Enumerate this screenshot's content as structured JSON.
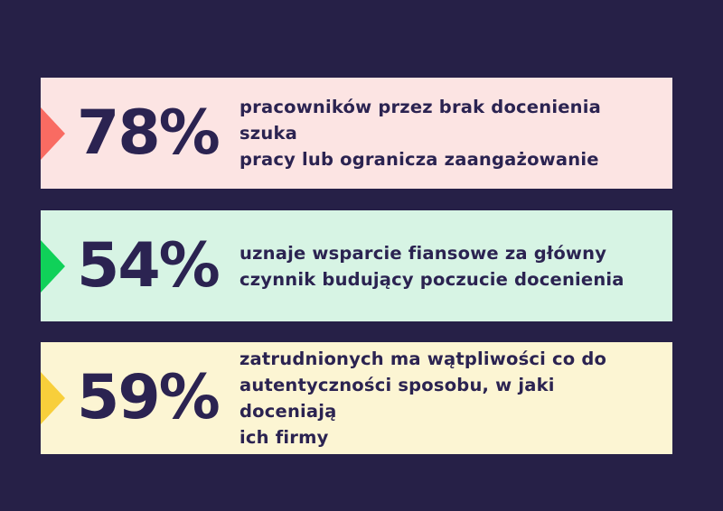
{
  "background": "#262047",
  "text_color": "#2b2351",
  "stats": [
    {
      "value": "78%",
      "bar_color": "#fce4e3",
      "arrow_color": "#f96b62",
      "lines": [
        "pracowników przez brak docenienia szuka",
        "pracy lub ogranicza zaangażowanie"
      ]
    },
    {
      "value": "54%",
      "bar_color": "#d7f4e4",
      "arrow_color": "#10d159",
      "lines": [
        "uznaje wsparcie fiansowe za główny",
        "czynnik budujący poczucie docenienia"
      ]
    },
    {
      "value": "59%",
      "bar_color": "#fcf5d3",
      "arrow_color": "#f8cf3b",
      "lines": [
        "zatrudnionych ma wątpliwości co do",
        "autentyczności sposobu, w jaki doceniają",
        "ich firmy"
      ]
    }
  ],
  "chart_data": {
    "type": "table",
    "categories": [
      "pracowników przez brak docenienia szuka pracy lub ogranicza zaangażowanie",
      "uznaje wsparcie fiansowe za główny czynnik budujący poczucie docenienia",
      "zatrudnionych ma wątpliwości co do autentyczności sposobu, w jaki doceniają ich firmy"
    ],
    "values": [
      78,
      54,
      59
    ],
    "unit": "%",
    "legend": "off",
    "grid": "off"
  }
}
